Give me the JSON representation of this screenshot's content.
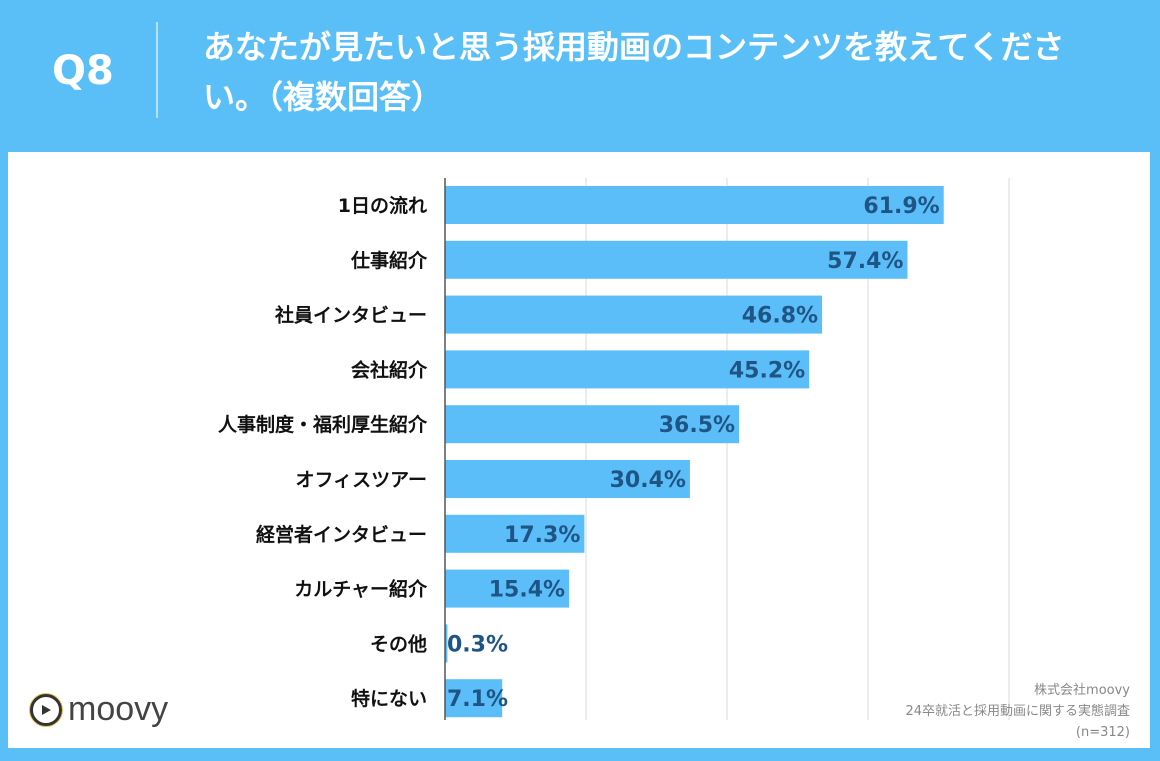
{
  "header": {
    "question_number": "Q8",
    "title": "あなたが見たいと思う採用動画のコンテンツを教えてください。（複数回答）"
  },
  "logo": {
    "text": "moovy"
  },
  "source": {
    "company": "株式会社moovy",
    "survey": "24卒就活と採用動画に関する実態調査",
    "sample": "(n=312)"
  },
  "colors": {
    "background": "#5bbff7",
    "bar": "#5bbef8",
    "value_label": "#1f5585"
  },
  "chart_data": {
    "type": "bar",
    "orientation": "horizontal",
    "categories": [
      "1日の流れ",
      "仕事紹介",
      "社員インタビュー",
      "会社紹介",
      "人事制度・福利厚生紹介",
      "オフィスツアー",
      "経営者インタビュー",
      "カルチャー紹介",
      "その他",
      "特にない"
    ],
    "values": [
      61.9,
      57.4,
      46.8,
      45.2,
      36.5,
      30.4,
      17.3,
      15.4,
      0.3,
      7.1
    ],
    "value_labels": [
      "61.9%",
      "57.4%",
      "46.8%",
      "45.2%",
      "36.5%",
      "30.4%",
      "17.3%",
      "15.4%",
      "0.3%",
      "7.1%"
    ],
    "unit": "%",
    "xlim": [
      0,
      70
    ],
    "grid": true
  }
}
